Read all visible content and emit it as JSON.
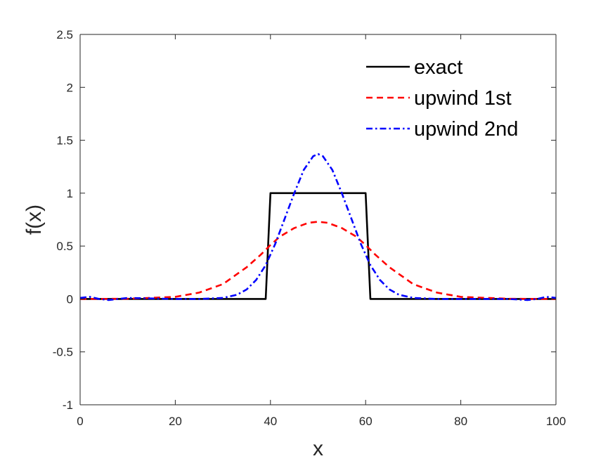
{
  "chart_data": {
    "type": "line",
    "title": "",
    "xlabel": "x",
    "ylabel": "f(x)",
    "xlim": [
      0,
      100
    ],
    "ylim": [
      -1,
      2.5
    ],
    "xticks": [
      0,
      20,
      40,
      60,
      80,
      100
    ],
    "xtick_labels": [
      "0",
      "20",
      "40",
      "60",
      "80",
      "100"
    ],
    "yticks": [
      -1,
      -0.5,
      0,
      0.5,
      1,
      1.5,
      2,
      2.5
    ],
    "ytick_labels": [
      "-1",
      "-0.5",
      "0",
      "0.5",
      "1",
      "1.5",
      "2",
      "2.5"
    ],
    "grid": false,
    "legend_position": "top-right",
    "series": [
      {
        "name": "exact",
        "color": "#000000",
        "style": "solid",
        "x": [
          0,
          39,
          40,
          60,
          61,
          100
        ],
        "y": [
          0,
          0,
          1,
          1,
          0,
          0
        ]
      },
      {
        "name": "upwind 1st",
        "color": "#ff0000",
        "style": "dashed",
        "x": [
          0,
          10,
          20,
          25,
          30,
          35,
          38,
          40,
          42,
          45,
          48,
          50,
          52,
          55,
          58,
          60,
          62,
          65,
          70,
          75,
          80,
          90,
          100
        ],
        "y": [
          0,
          0.002,
          0.02,
          0.06,
          0.14,
          0.3,
          0.42,
          0.51,
          0.59,
          0.67,
          0.72,
          0.73,
          0.72,
          0.67,
          0.59,
          0.51,
          0.42,
          0.3,
          0.14,
          0.06,
          0.02,
          0.002,
          0
        ]
      },
      {
        "name": "upwind 2nd",
        "color": "#0000ff",
        "style": "dashdot",
        "x": [
          0,
          2,
          4,
          6,
          8,
          10,
          15,
          20,
          25,
          30,
          33,
          35,
          37,
          39,
          41,
          43,
          45,
          47,
          49,
          50,
          51,
          53,
          55,
          57,
          59,
          61,
          63,
          65,
          67,
          70,
          75,
          80,
          85,
          90,
          92,
          94,
          96,
          98,
          100
        ],
        "y": [
          0.01,
          0.02,
          0,
          -0.01,
          0,
          0.01,
          0.005,
          0,
          0,
          0.01,
          0.04,
          0.09,
          0.18,
          0.32,
          0.52,
          0.76,
          1.0,
          1.22,
          1.35,
          1.37,
          1.35,
          1.22,
          1.0,
          0.76,
          0.52,
          0.32,
          0.18,
          0.09,
          0.04,
          0.01,
          0,
          0,
          0,
          0,
          -0.005,
          -0.01,
          0,
          0.02,
          0.01
        ]
      }
    ]
  }
}
